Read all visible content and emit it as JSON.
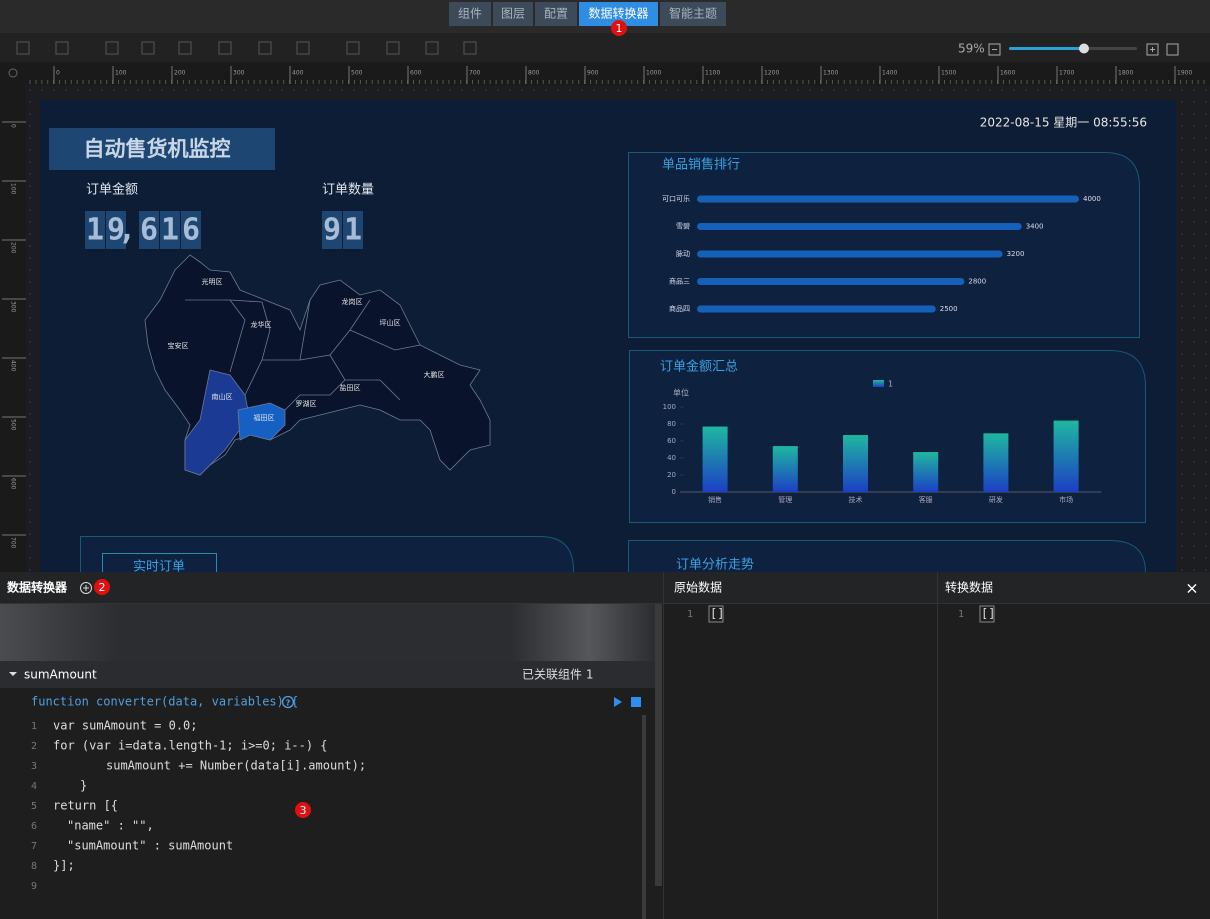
{
  "tabs": [
    "组件",
    "图层",
    "配置",
    "数据转换器",
    "智能主题"
  ],
  "active_tab": 3,
  "badges": [
    "1",
    "2",
    "3"
  ],
  "zoom": "59%",
  "ruler": {
    "x_labels": [
      0,
      100,
      200,
      300,
      400,
      500,
      600,
      700,
      800,
      900,
      1000,
      1100,
      1200,
      1300,
      1400,
      1500,
      1600,
      1700,
      1800,
      1900
    ],
    "y_labels": [
      0,
      100,
      200,
      300,
      400,
      500,
      600,
      700
    ]
  },
  "dashboard": {
    "title": "自动售货机监控",
    "datetime": "2022-08-15 星期一 08:55:56",
    "order_amount": {
      "label": "订单金额",
      "value": "19,616"
    },
    "order_count": {
      "label": "订单数量",
      "value": "91"
    },
    "map_districts": [
      "光明区",
      "宝安区",
      "龙华区",
      "龙岗区",
      "坪山区",
      "大鹏区",
      "南山区",
      "福田区",
      "罗湖区",
      "盐田区"
    ],
    "sales_rank": {
      "title": "单品销售排行",
      "categories": [
        "可口可乐",
        "雪碧",
        "脉动",
        "商品三",
        "商品四"
      ],
      "values": [
        4000,
        3400,
        3200,
        2800,
        2500
      ]
    },
    "order_summary": {
      "title": "订单金额汇总",
      "legend": "1",
      "unit_label": "单位",
      "categories": [
        "销售",
        "管理",
        "技术",
        "客服",
        "研发",
        "市场"
      ],
      "values": [
        77,
        54,
        67,
        47,
        69,
        84
      ],
      "ylim": [
        0,
        100
      ],
      "yticks": [
        0,
        20,
        40,
        60,
        80,
        100
      ]
    },
    "realtime_orders": {
      "title": "实时订单"
    },
    "order_trend": {
      "title": "订单分析走势"
    }
  },
  "converter": {
    "title": "数据转换器",
    "name": "sumAmount",
    "linked": "已关联组件 1",
    "signature": "function converter(data, variables) {",
    "lines": [
      {
        "n": 1,
        "code": "var sumAmount = 0.0;"
      },
      {
        "n": 2,
        "code": "for (var i=data.length-1; i>=0; i--) {"
      },
      {
        "n": 3,
        "code": "sumAmount += Number(data[i].amount);"
      },
      {
        "n": 4,
        "code": "}"
      },
      {
        "n": 5,
        "code": "return [{"
      },
      {
        "n": 6,
        "code": "\"name\" : \"\","
      },
      {
        "n": 7,
        "code": "\"sumAmount\" : sumAmount"
      },
      {
        "n": 8,
        "code": "}];"
      },
      {
        "n": 9
      }
    ]
  },
  "raw_data": {
    "title": "原始数据",
    "lines": [
      {
        "n": 1,
        "code": "[]"
      }
    ]
  },
  "transformed_data": {
    "title": "转换数据",
    "lines": [
      {
        "n": 1,
        "code": "[]"
      }
    ]
  },
  "close": "×"
}
